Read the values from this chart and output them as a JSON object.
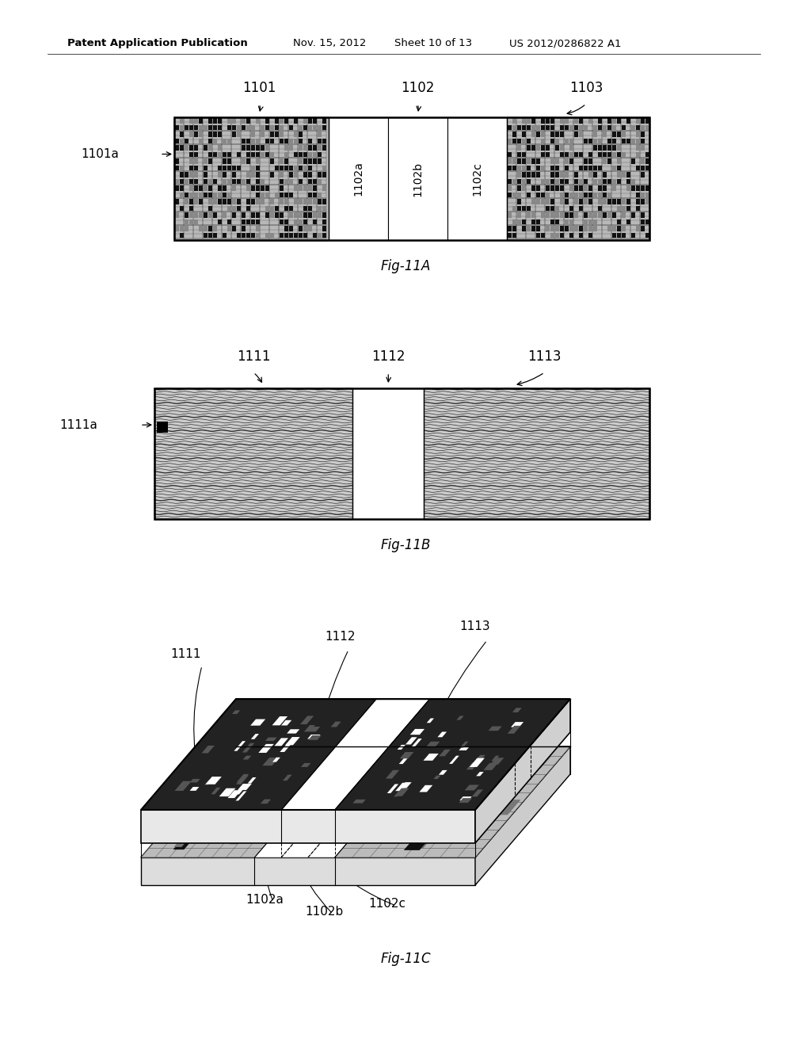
{
  "bg_color": "#ffffff",
  "header_text": "Patent Application Publication",
  "header_date": "Nov. 15, 2012",
  "header_sheet": "Sheet 10 of 13",
  "header_patent": "US 2012/0286822 A1",
  "fig11a_caption": "Fig-11A",
  "fig11b_caption": "Fig-11B",
  "fig11c_caption": "Fig-11C",
  "text_color": "#000000"
}
